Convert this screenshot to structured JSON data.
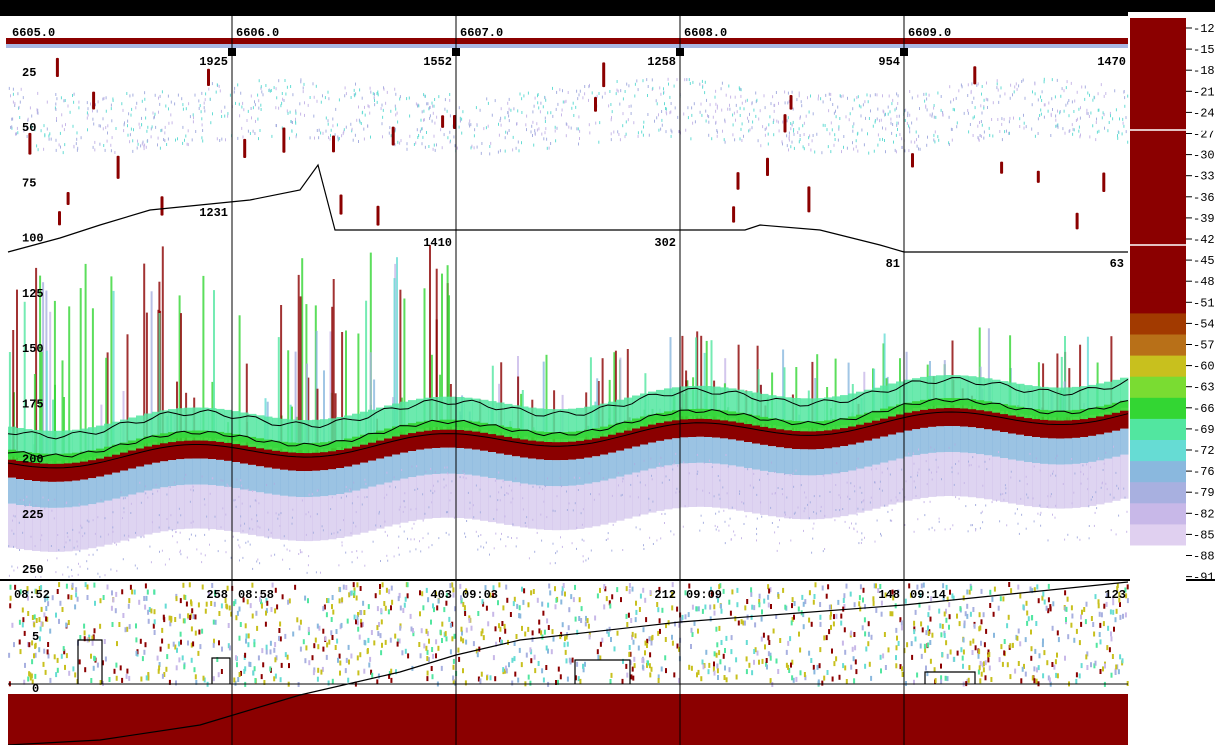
{
  "app": {
    "colors": {
      "background": "#ffffff",
      "sv_strong": "#8b0000",
      "axis": "#000000"
    }
  },
  "chart_data": {
    "type": "heatmap",
    "title": "",
    "xlabel": "",
    "ylabel": "",
    "distance_ticks": [
      "6605.0",
      "6606.0",
      "6607.0",
      "6608.0",
      "6609.0"
    ],
    "ping_ticks": [
      {
        "ping": "1925"
      },
      {
        "ping": "1552"
      },
      {
        "ping": "1258"
      },
      {
        "ping": "954"
      },
      {
        "ping": "1470"
      }
    ],
    "depth_axis": {
      "ticks": [
        "25",
        "50",
        "75",
        "100",
        "125",
        "150",
        "175",
        "200",
        "225",
        "250"
      ],
      "range": [
        10,
        250
      ],
      "grid": false
    },
    "line_labels": [
      {
        "text": "1231"
      },
      {
        "text": "1410"
      },
      {
        "text": "302"
      },
      {
        "text": "81"
      },
      {
        "text": "63"
      }
    ],
    "lower_panel": {
      "time_ticks": [
        "08:52",
        "08:58",
        "09:03",
        "09:09",
        "09:14"
      ],
      "counts": [
        "258",
        "403",
        "212",
        "148",
        "123"
      ],
      "y_ticks": [
        "5",
        "0"
      ]
    },
    "color_scale": {
      "labels": [
        "-12",
        "-15",
        "-18",
        "-21",
        "-24",
        "-27",
        "-30",
        "-33",
        "-36",
        "-39",
        "-42",
        "-45",
        "-48",
        "-51",
        "-54",
        "-57",
        "-60",
        "-63",
        "-66",
        "-69",
        "-72",
        "-76",
        "-79",
        "-82",
        "-85",
        "-88",
        "-91"
      ],
      "colors": [
        "#8b0000",
        "#8b0000",
        "#8b0000",
        "#8b0000",
        "#8b0000",
        "#8b0000",
        "#8b0000",
        "#8b0000",
        "#8b0000",
        "#8b0000",
        "#8b0000",
        "#8b0000",
        "#8b0000",
        "#8b0000",
        "#a23a00",
        "#b87018",
        "#c8c01e",
        "#7adc32",
        "#33d633",
        "#52e6a0",
        "#66dcd4",
        "#8ab8de",
        "#a8b0e0",
        "#c8b8e8",
        "#e0d0f0",
        "#ffffff",
        "#ffffff"
      ]
    }
  }
}
